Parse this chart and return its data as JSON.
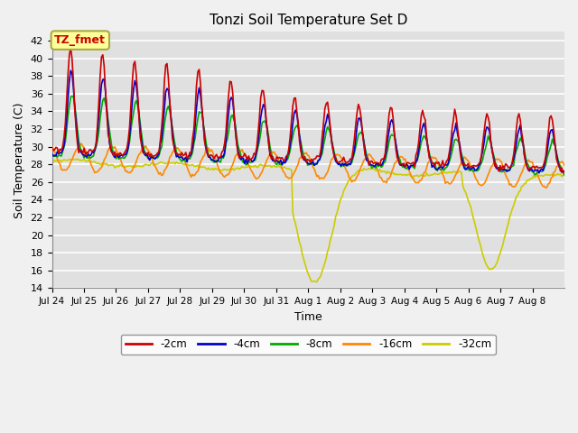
{
  "title": "Tonzi Soil Temperature Set D",
  "xlabel": "Time",
  "ylabel": "Soil Temperature (C)",
  "ylim": [
    14,
    43
  ],
  "yticks": [
    14,
    16,
    18,
    20,
    22,
    24,
    26,
    28,
    30,
    32,
    34,
    36,
    38,
    40,
    42
  ],
  "fig_bg": "#f0f0f0",
  "plot_bg": "#e0e0e0",
  "colors": {
    "-2cm": "#cc0000",
    "-4cm": "#0000cc",
    "-8cm": "#00aa00",
    "-16cm": "#ff8800",
    "-32cm": "#cccc00"
  },
  "legend_label": "TZ_fmet",
  "legend_bg": "#ffff99",
  "legend_border": "#aaaa44",
  "x_tick_labels": [
    "Jul 24",
    "Jul 25",
    "Jul 26",
    "Jul 27",
    "Jul 28",
    "Jul 29",
    "Jul 30",
    "Jul 31",
    "Aug 1",
    "Aug 2",
    "Aug 3",
    "Aug 4",
    "Aug 5",
    "Aug 6",
    "Aug 7",
    "Aug 8"
  ]
}
